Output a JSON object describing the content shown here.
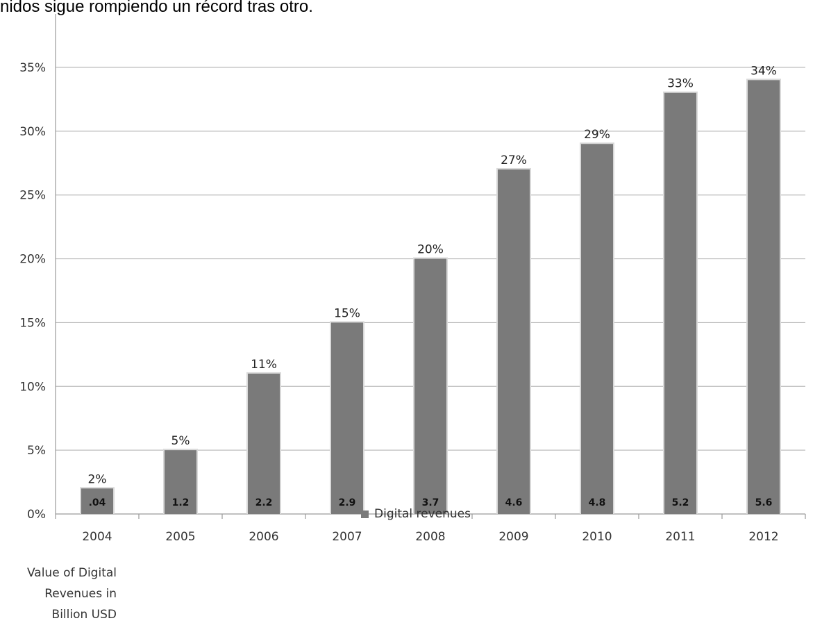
{
  "caption": "nidos sigue rompiendo un récord tras otro.",
  "chart_data": {
    "type": "bar",
    "categories": [
      "2004",
      "2005",
      "2006",
      "2007",
      "2008",
      "2009",
      "2010",
      "2011",
      "2012"
    ],
    "series": [
      {
        "name": "Digital revenues",
        "values": [
          2,
          5,
          11,
          15,
          20,
          27,
          29,
          33,
          34
        ],
        "top_labels": [
          "2%",
          "5%",
          "11%",
          "15%",
          "20%",
          "27%",
          "29%",
          "33%",
          "34%"
        ],
        "inner_labels": [
          ".04",
          "1.2",
          "2.2",
          "2.9",
          "3.7",
          "4.6",
          "4.8",
          "5.2",
          "5.6"
        ]
      }
    ],
    "yticks": [
      0,
      5,
      10,
      15,
      20,
      25,
      30,
      35
    ],
    "ytick_labels": [
      "0%",
      "5%",
      "10%",
      "15%",
      "20%",
      "25%",
      "30%",
      "35%"
    ],
    "ylim": [
      0,
      38
    ],
    "grid": true,
    "legend_position": "bottom-center",
    "bar_color": "#7a7a7a",
    "side_note_lines": [
      "Value of Digital",
      "Revenues in",
      "Billion USD"
    ]
  }
}
